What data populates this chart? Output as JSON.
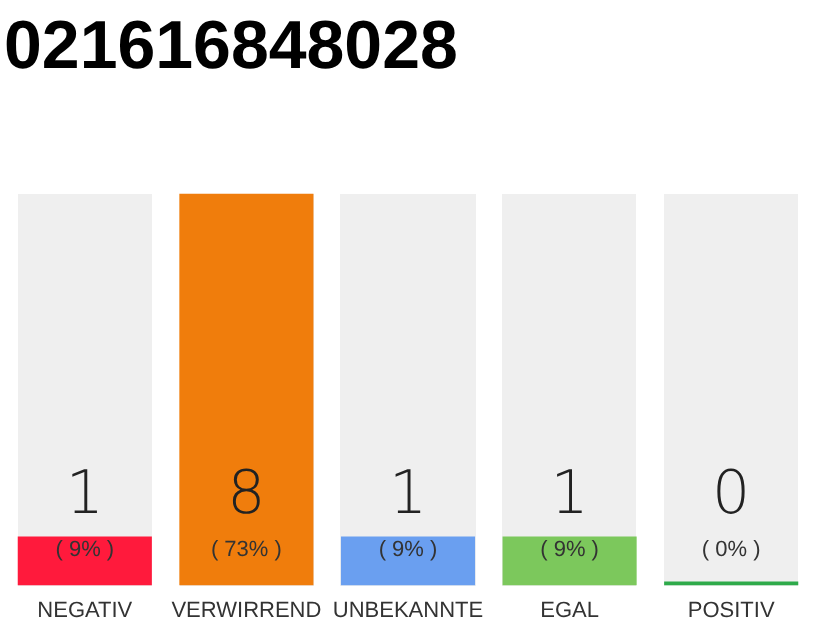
{
  "chart_data": {
    "type": "bar",
    "title": "021616848028",
    "categories": [
      "NEGATIV",
      "VERWIRREND",
      "UNBEKANNTE",
      "EGAL",
      "POSITIV"
    ],
    "values": [
      1,
      8,
      1,
      1,
      0
    ],
    "colors": [
      "#ff1a3c",
      "#f07d0c",
      "#6a9ff0",
      "#7cc85c",
      "#2eaa4a"
    ],
    "data_labels": true,
    "annotations": [
      "( 9% )",
      "( 73% )",
      "( 9% )",
      "( 9% )",
      "( 0% )"
    ],
    "tick_labels": "x",
    "grid": false,
    "legend": false
  }
}
